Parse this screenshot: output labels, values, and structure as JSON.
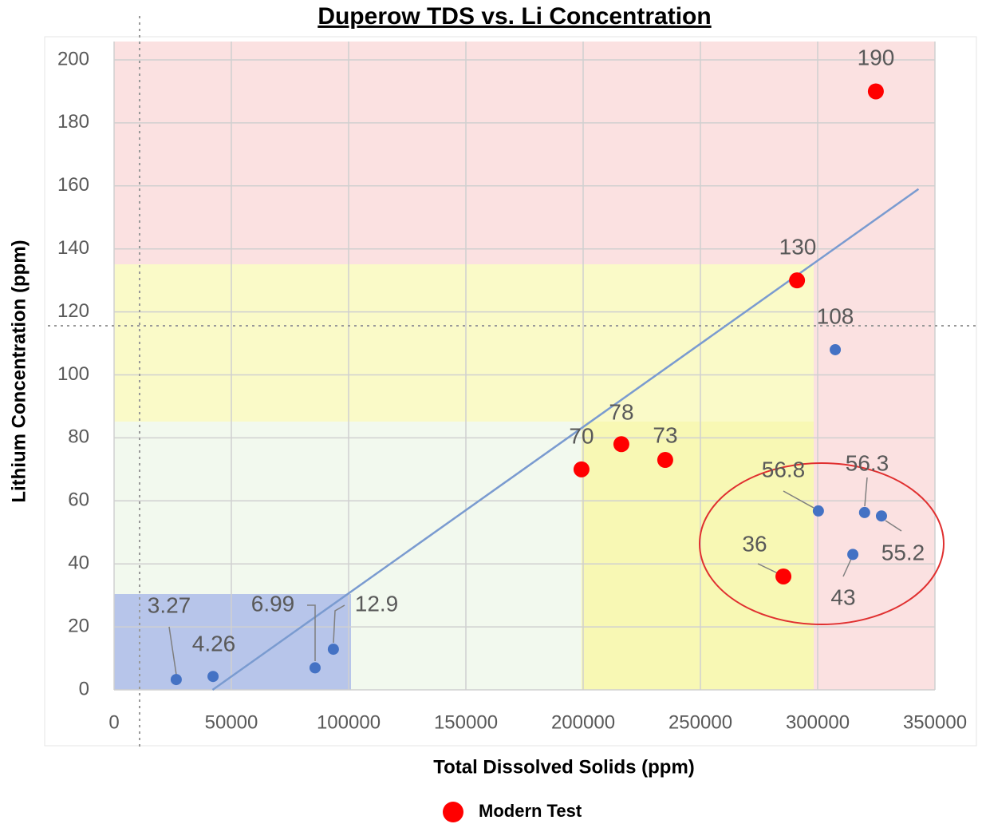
{
  "chart_data": {
    "type": "scatter",
    "title": "Duperow TDS vs. Li Concentration",
    "xlabel": "Total Dissolved Solids (ppm)",
    "ylabel": "Lithium Concentration (ppm)",
    "series": [
      {
        "color": "#4472c4",
        "x": [
          26500,
          42200,
          85700,
          93500,
          307500,
          300300,
          320000,
          327200,
          315000
        ],
        "values": [
          3.27,
          4.26,
          6.99,
          12.9,
          108,
          56.8,
          56.3,
          55.2,
          43
        ]
      },
      {
        "name": "Modern Test",
        "color": "#ff0000",
        "x": [
          324800,
          291200,
          199300,
          216300,
          235000,
          285400
        ],
        "values": [
          190,
          130,
          70,
          78,
          73,
          36
        ]
      }
    ],
    "trendline": {
      "color": "#7a9bd0",
      "x": [
        42000,
        343000
      ],
      "values": [
        0,
        159
      ]
    },
    "xlim": [
      0,
      350000
    ],
    "ylim": [
      0,
      200
    ],
    "xticks": [
      0,
      50000,
      100000,
      150000,
      200000,
      250000,
      300000,
      350000
    ],
    "yticks": [
      0,
      20,
      40,
      60,
      80,
      100,
      120,
      140,
      160,
      180,
      200
    ],
    "grid": true
  }
}
